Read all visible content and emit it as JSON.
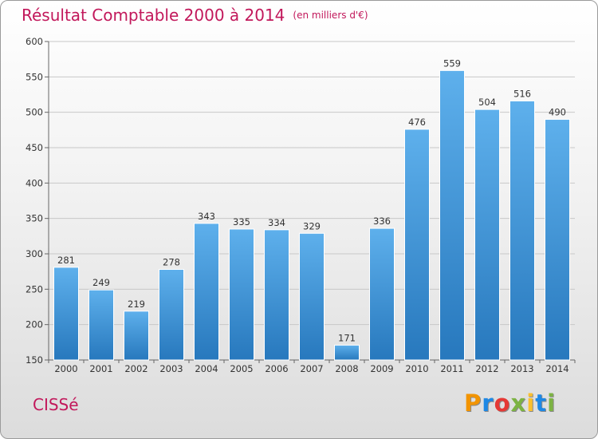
{
  "chart_data": {
    "type": "bar",
    "title": "Résultat Comptable 2000 à 2014",
    "subtitle": "(en milliers d'€)",
    "categories": [
      "2000",
      "2001",
      "2002",
      "2003",
      "2004",
      "2005",
      "2006",
      "2007",
      "2008",
      "2009",
      "2010",
      "2011",
      "2012",
      "2013",
      "2014"
    ],
    "values": [
      281,
      249,
      219,
      278,
      343,
      335,
      334,
      329,
      171,
      336,
      476,
      559,
      504,
      516,
      490
    ],
    "ylim": [
      150,
      600
    ],
    "yticks": [
      150,
      200,
      250,
      300,
      350,
      400,
      450,
      500,
      550,
      600
    ],
    "xlabel": "",
    "ylabel": "",
    "grid": true,
    "bar_color": "#4a9fe0"
  },
  "footer": {
    "city": "CISSé",
    "brand_letters": [
      "P",
      "r",
      "o",
      "x",
      "i",
      "t",
      "i"
    ],
    "brand_colors": [
      "#f29400",
      "#1e88e5",
      "#e53935",
      "#7cb342",
      "#fbc02d",
      "#1e88e5",
      "#7cb342"
    ]
  }
}
